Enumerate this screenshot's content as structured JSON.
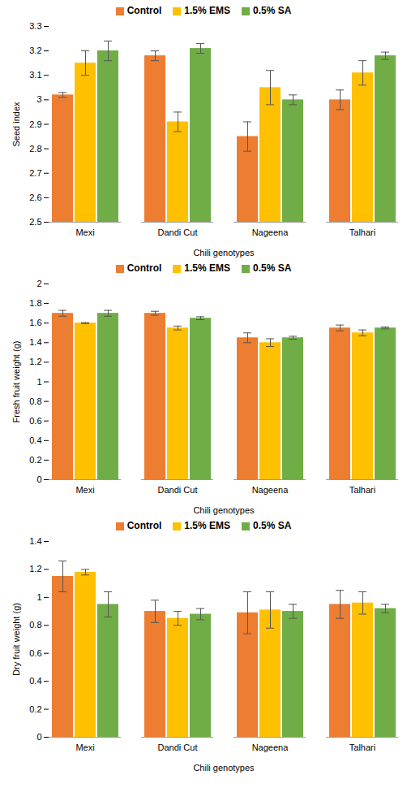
{
  "chart_data": [
    {
      "type": "bar",
      "y_label": "Seed index",
      "x_label": "Chili genotypes",
      "categories": [
        "Mexi",
        "Dandi Cut",
        "Nageena",
        "Talhari"
      ],
      "series": [
        {
          "name": "Control",
          "color": "#ED7D31",
          "values": [
            3.02,
            3.18,
            2.85,
            3.0
          ],
          "errors": [
            0.01,
            0.02,
            0.06,
            0.04
          ]
        },
        {
          "name": "1.5% EMS",
          "color": "#FFC000",
          "values": [
            3.15,
            2.91,
            3.05,
            3.11
          ],
          "errors": [
            0.05,
            0.04,
            0.07,
            0.05
          ]
        },
        {
          "name": "0.5% SA",
          "color": "#70AD47",
          "values": [
            3.2,
            3.21,
            3.0,
            3.18
          ],
          "errors": [
            0.04,
            0.02,
            0.02,
            0.015
          ]
        }
      ],
      "ylim": [
        2.5,
        3.3
      ],
      "yticks": [
        2.5,
        2.6,
        2.7,
        2.8,
        2.9,
        3,
        3.1,
        3.2,
        3.3
      ],
      "legend": "top"
    },
    {
      "type": "bar",
      "y_label": "Fresh fruit weight (g)",
      "x_label": "Chili genotypes",
      "categories": [
        "Mexi",
        "Dandi Cut",
        "Nageena",
        "Talhari"
      ],
      "series": [
        {
          "name": "Control",
          "color": "#ED7D31",
          "values": [
            1.7,
            1.7,
            1.45,
            1.55
          ],
          "errors": [
            0.03,
            0.02,
            0.05,
            0.03
          ]
        },
        {
          "name": "1.5% EMS",
          "color": "#FFC000",
          "values": [
            1.6,
            1.55,
            1.4,
            1.5
          ],
          "errors": [
            0.005,
            0.02,
            0.04,
            0.03
          ]
        },
        {
          "name": "0.5% SA",
          "color": "#70AD47",
          "values": [
            1.7,
            1.65,
            1.45,
            1.55
          ],
          "errors": [
            0.03,
            0.015,
            0.015,
            0.01
          ]
        }
      ],
      "ylim": [
        0,
        2
      ],
      "yticks": [
        0,
        0.2,
        0.4,
        0.6,
        0.8,
        1,
        1.2,
        1.4,
        1.6,
        1.8,
        2
      ],
      "legend": "top"
    },
    {
      "type": "bar",
      "y_label": "Dry fruit weight (g)",
      "x_label": "Chili genotypes",
      "categories": [
        "Mexi",
        "Dandi Cut",
        "Nageena",
        "Talhari"
      ],
      "series": [
        {
          "name": "Control",
          "color": "#ED7D31",
          "values": [
            1.15,
            0.9,
            0.89,
            0.95
          ],
          "errors": [
            0.11,
            0.08,
            0.15,
            0.1
          ]
        },
        {
          "name": "1.5% EMS",
          "color": "#FFC000",
          "values": [
            1.18,
            0.85,
            0.91,
            0.96
          ],
          "errors": [
            0.02,
            0.05,
            0.13,
            0.08
          ]
        },
        {
          "name": "0.5% SA",
          "color": "#70AD47",
          "values": [
            0.95,
            0.88,
            0.9,
            0.92
          ],
          "errors": [
            0.09,
            0.04,
            0.05,
            0.03
          ]
        }
      ],
      "ylim": [
        0,
        1.4
      ],
      "yticks": [
        0,
        0.2,
        0.4,
        0.6,
        0.8,
        1,
        1.2,
        1.4
      ],
      "legend": "top"
    }
  ]
}
